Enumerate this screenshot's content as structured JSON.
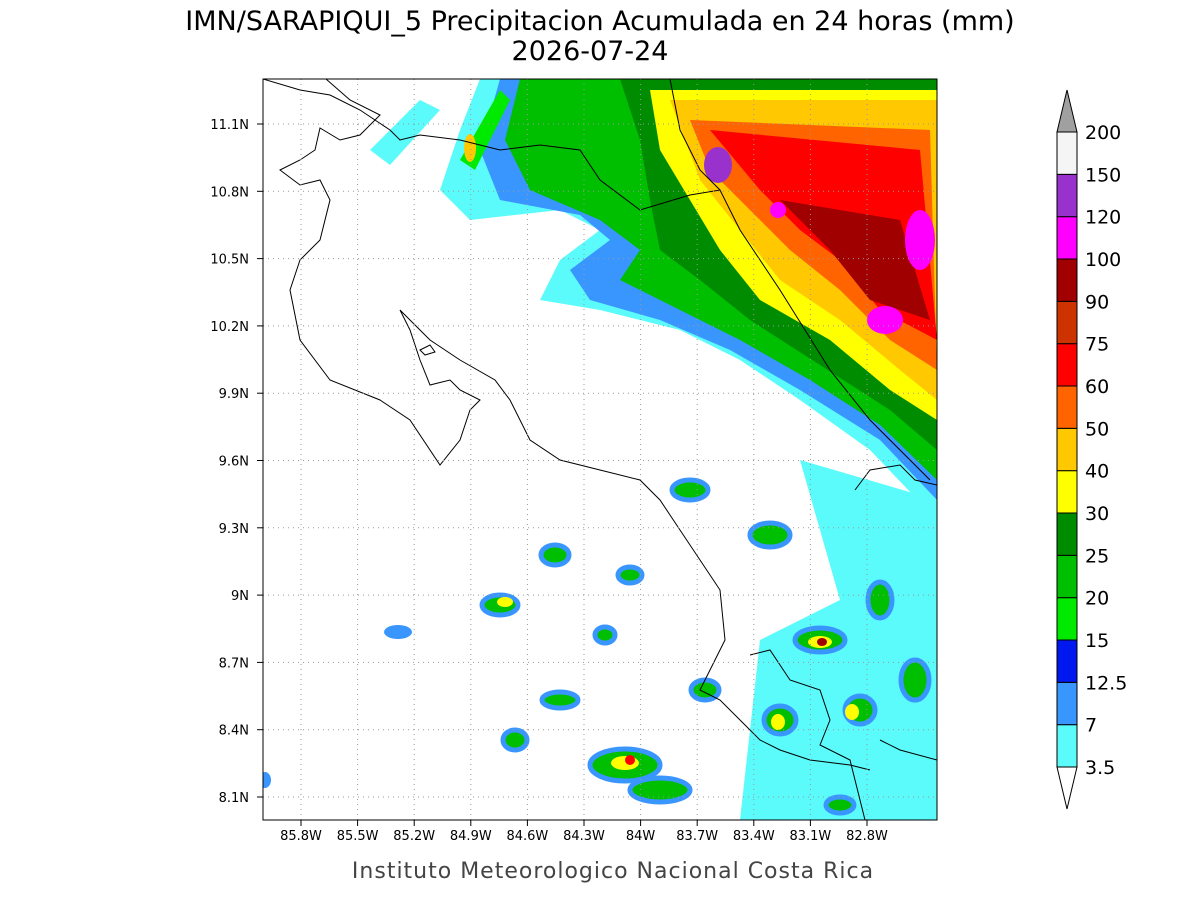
{
  "map": {
    "title": "IMN/SARAPIQUI_5 Precipitacion Acumulada en 24 horas (mm)",
    "subtitle": "2026-07-24",
    "footer": "Instituto Meteorologico Nacional Costa Rica",
    "lat_labels": [
      "11.1N",
      "10.8N",
      "10.5N",
      "10.2N",
      "9.9N",
      "9.6N",
      "9.3N",
      "9N",
      "8.7N",
      "8.4N",
      "8.1N"
    ],
    "lon_labels": [
      "85.8W",
      "85.5W",
      "85.2W",
      "84.9W",
      "84.6W",
      "84.3W",
      "84W",
      "83.7W",
      "83.4W",
      "83.1W",
      "82.8W"
    ]
  },
  "colorbar": {
    "levels": [
      3.5,
      7,
      12.5,
      15,
      20,
      25,
      30,
      40,
      50,
      60,
      75,
      90,
      100,
      120,
      150,
      200
    ],
    "colors": [
      "#5cfbfb",
      "#3a96ff",
      "#0018f0",
      "#00ea00",
      "#00be00",
      "#008c00",
      "#ffff00",
      "#ffc800",
      "#ff6400",
      "#ff0000",
      "#cc3300",
      "#a00000",
      "#ff00ff",
      "#9932cc",
      "#f5f5f5"
    ],
    "under_color": "#ffffff",
    "over_color": "#a0a0a0"
  }
}
